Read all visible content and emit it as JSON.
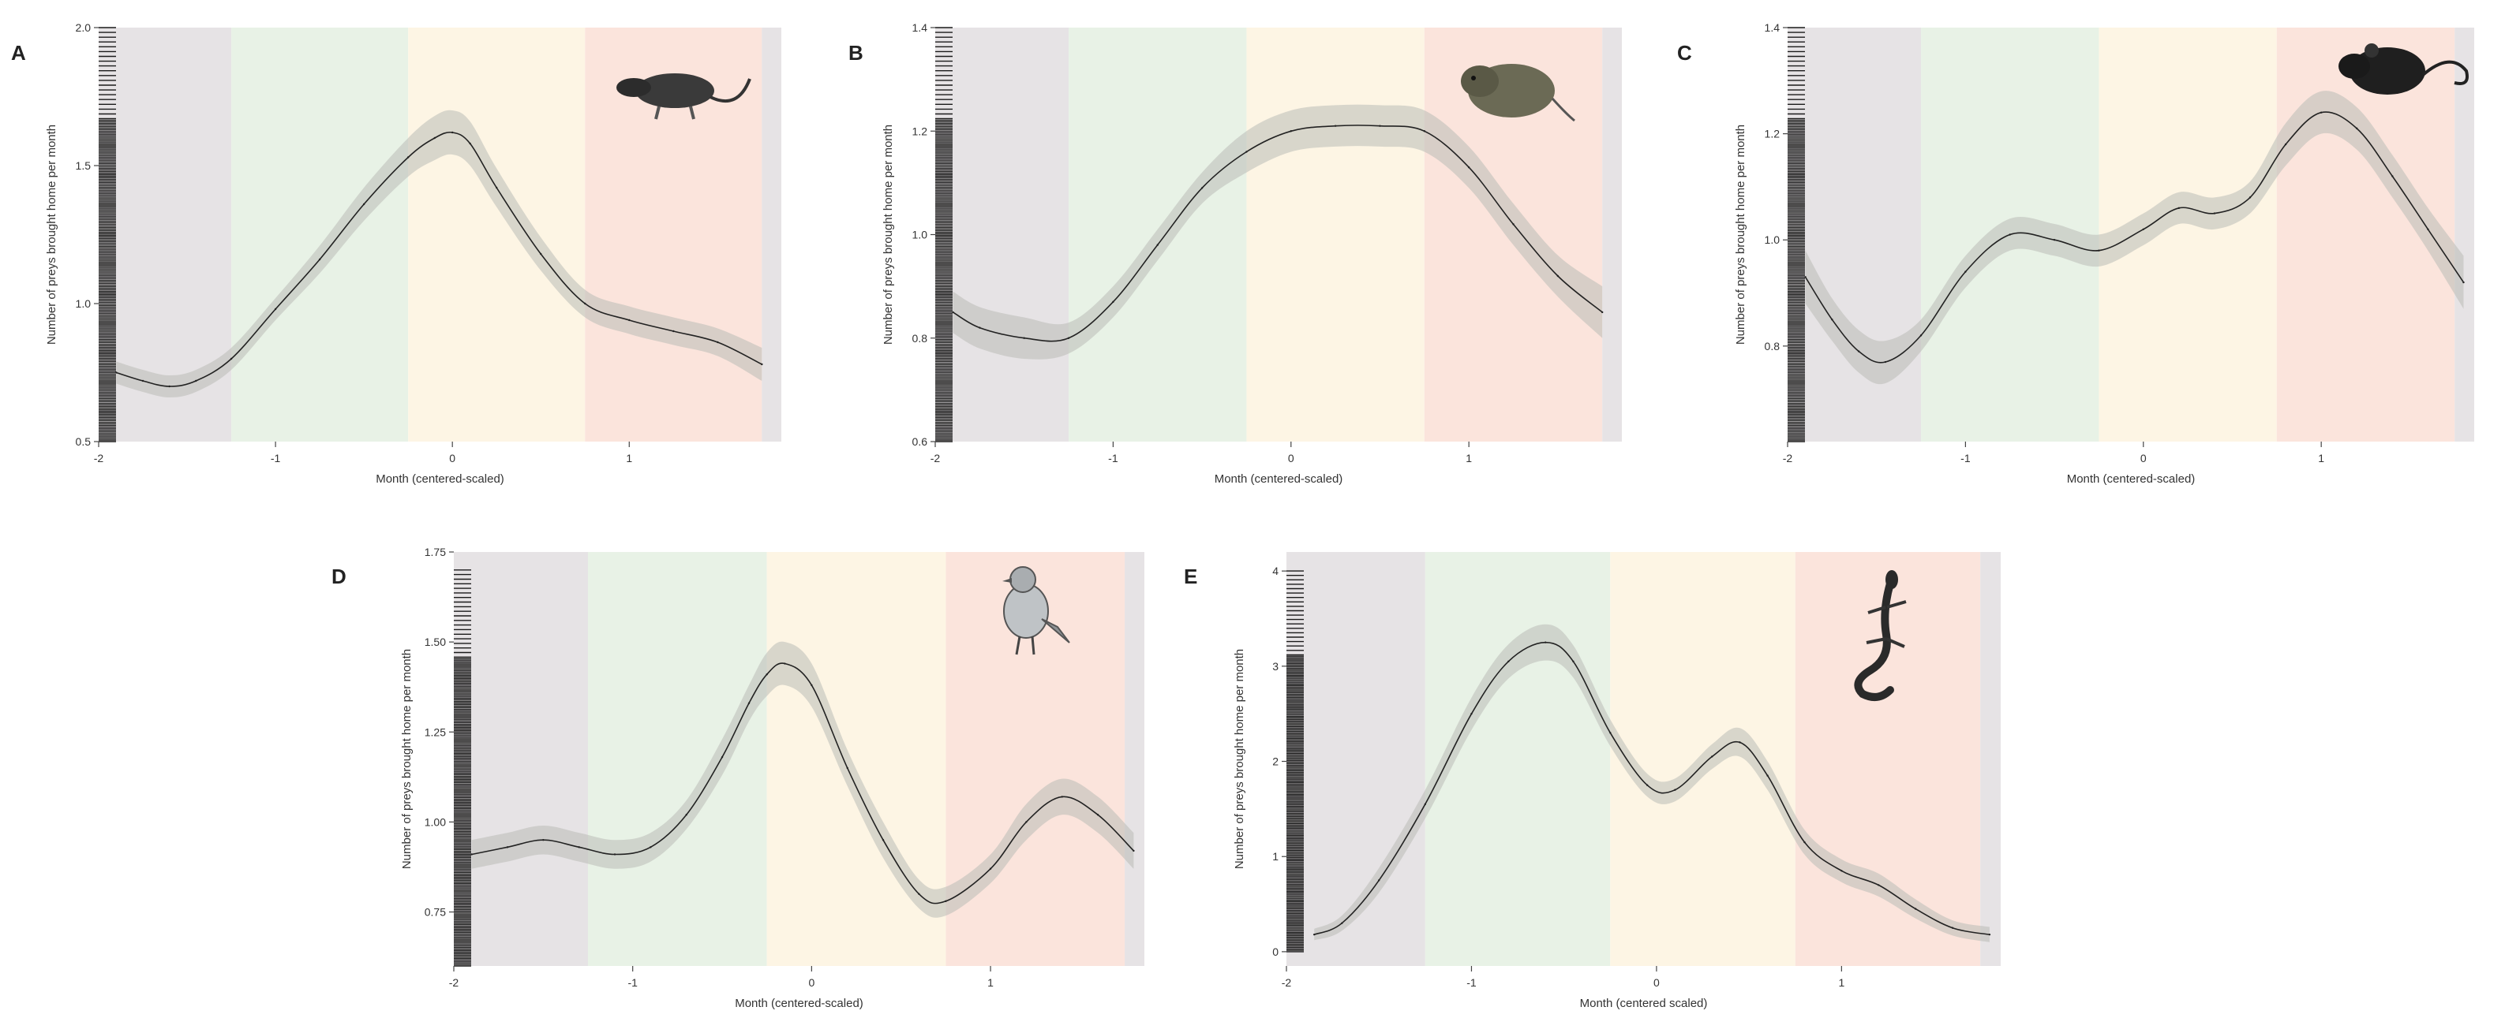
{
  "figure": {
    "season_colors": {
      "winter": "#e6e3e5",
      "spring": "#e8f2e6",
      "summer": "#fdf5e4",
      "autumn": "#fbe4dc",
      "edge": "#e6e3e5"
    },
    "line_color": "#222222",
    "band_color": "#b9bcb7",
    "rug_color": "#1a1a1a"
  },
  "chart_data": [
    {
      "type": "line",
      "panel": "A",
      "icon": "shrew-icon",
      "xlabel": "Month (centered-scaled)",
      "ylabel": "Number of preys brought home per month",
      "xlim": [
        -2.0,
        1.86
      ],
      "ylim": [
        0.5,
        2.0
      ],
      "xticks": [
        -2,
        -1,
        0,
        1
      ],
      "xtick_labels": [
        "-2",
        "-1",
        "0",
        "1"
      ],
      "yticks": [
        0.5,
        1.0,
        1.5,
        2.0
      ],
      "ytick_labels": [
        "0.5",
        "1.0",
        "1.5",
        "2.0"
      ],
      "season_bounds": [
        -1.25,
        -0.25,
        0.75,
        1.75
      ],
      "rug_start": 0.5,
      "rug_end": 2.0,
      "x": [
        -1.9,
        -1.75,
        -1.6,
        -1.45,
        -1.25,
        -1.0,
        -0.75,
        -0.5,
        -0.25,
        -0.1,
        0.0,
        0.1,
        0.25,
        0.5,
        0.75,
        1.0,
        1.25,
        1.5,
        1.75
      ],
      "y": [
        0.75,
        0.72,
        0.7,
        0.72,
        0.8,
        0.98,
        1.16,
        1.36,
        1.53,
        1.6,
        1.62,
        1.58,
        1.42,
        1.18,
        1.0,
        0.94,
        0.9,
        0.86,
        0.78
      ],
      "lower": [
        0.71,
        0.68,
        0.66,
        0.68,
        0.76,
        0.94,
        1.11,
        1.3,
        1.46,
        1.52,
        1.54,
        1.5,
        1.35,
        1.12,
        0.95,
        0.89,
        0.85,
        0.81,
        0.72
      ],
      "upper": [
        0.79,
        0.76,
        0.74,
        0.76,
        0.84,
        1.02,
        1.21,
        1.42,
        1.6,
        1.68,
        1.7,
        1.66,
        1.49,
        1.24,
        1.05,
        0.99,
        0.95,
        0.91,
        0.84
      ]
    },
    {
      "type": "line",
      "panel": "B",
      "icon": "vole-icon",
      "xlabel": "Month (centered-scaled)",
      "ylabel": "Number of preys brought home per month",
      "xlim": [
        -2.0,
        1.86
      ],
      "ylim": [
        0.6,
        1.4
      ],
      "xticks": [
        -2,
        -1,
        0,
        1
      ],
      "xtick_labels": [
        "-2",
        "-1",
        "0",
        "1"
      ],
      "yticks": [
        0.6,
        0.8,
        1.0,
        1.2,
        1.4
      ],
      "ytick_labels": [
        "0.6",
        "0.8",
        "1.0",
        "1.2",
        "1.4"
      ],
      "season_bounds": [
        -1.25,
        -0.25,
        0.75,
        1.75
      ],
      "rug_start": 0.6,
      "rug_end": 1.4,
      "x": [
        -1.9,
        -1.75,
        -1.5,
        -1.25,
        -1.0,
        -0.75,
        -0.5,
        -0.25,
        0.0,
        0.25,
        0.5,
        0.75,
        1.0,
        1.25,
        1.5,
        1.75
      ],
      "y": [
        0.85,
        0.82,
        0.8,
        0.8,
        0.87,
        0.98,
        1.09,
        1.16,
        1.2,
        1.21,
        1.21,
        1.2,
        1.13,
        1.02,
        0.92,
        0.85
      ],
      "lower": [
        0.81,
        0.78,
        0.76,
        0.77,
        0.84,
        0.95,
        1.06,
        1.12,
        1.16,
        1.17,
        1.17,
        1.16,
        1.09,
        0.98,
        0.88,
        0.8
      ],
      "upper": [
        0.89,
        0.86,
        0.84,
        0.83,
        0.9,
        1.01,
        1.12,
        1.2,
        1.24,
        1.25,
        1.25,
        1.24,
        1.17,
        1.06,
        0.96,
        0.9
      ]
    },
    {
      "type": "line",
      "panel": "C",
      "icon": "rat-icon",
      "xlabel": "Month (centered-scaled)",
      "ylabel": "Number of preys brought home per month",
      "xlim": [
        -2.0,
        1.86
      ],
      "ylim": [
        0.62,
        1.4
      ],
      "xticks": [
        -2,
        -1,
        0,
        1
      ],
      "xtick_labels": [
        "-2",
        "-1",
        "0",
        "1"
      ],
      "yticks": [
        0.8,
        1.0,
        1.2,
        1.4
      ],
      "ytick_labels": [
        "0.8",
        "1.0",
        "1.2",
        "1.4"
      ],
      "season_bounds": [
        -1.25,
        -0.25,
        0.75,
        1.75
      ],
      "rug_start": 0.62,
      "rug_end": 1.4,
      "x": [
        -1.9,
        -1.75,
        -1.6,
        -1.45,
        -1.25,
        -1.0,
        -0.75,
        -0.5,
        -0.25,
        0.0,
        0.2,
        0.4,
        0.6,
        0.8,
        1.0,
        1.2,
        1.4,
        1.6,
        1.8
      ],
      "y": [
        0.93,
        0.85,
        0.79,
        0.77,
        0.82,
        0.94,
        1.01,
        1.0,
        0.98,
        1.02,
        1.06,
        1.05,
        1.08,
        1.18,
        1.24,
        1.21,
        1.12,
        1.02,
        0.92
      ],
      "lower": [
        0.88,
        0.81,
        0.75,
        0.73,
        0.79,
        0.91,
        0.98,
        0.97,
        0.95,
        0.99,
        1.03,
        1.02,
        1.05,
        1.14,
        1.2,
        1.17,
        1.08,
        0.98,
        0.87
      ],
      "upper": [
        0.98,
        0.89,
        0.83,
        0.81,
        0.85,
        0.97,
        1.04,
        1.03,
        1.01,
        1.05,
        1.09,
        1.08,
        1.11,
        1.22,
        1.28,
        1.25,
        1.16,
        1.06,
        0.97
      ]
    },
    {
      "type": "line",
      "panel": "D",
      "icon": "bird-icon",
      "xlabel": "Month (centered-scaled)",
      "ylabel": "Number of preys brought home per month",
      "xlim": [
        -2.0,
        1.86
      ],
      "ylim": [
        0.6,
        1.75
      ],
      "xticks": [
        -2,
        -1,
        0,
        1
      ],
      "xtick_labels": [
        "-2",
        "-1",
        "0",
        "1"
      ],
      "yticks": [
        0.75,
        1.0,
        1.25,
        1.5,
        1.75
      ],
      "ytick_labels": [
        "0.75",
        "1.00",
        "1.25",
        "1.50",
        "1.75"
      ],
      "season_bounds": [
        -1.25,
        -0.25,
        0.75,
        1.75
      ],
      "rug_start": 0.6,
      "rug_end": 1.7,
      "x": [
        -1.9,
        -1.7,
        -1.5,
        -1.3,
        -1.1,
        -0.9,
        -0.7,
        -0.5,
        -0.35,
        -0.25,
        -0.15,
        0.0,
        0.2,
        0.4,
        0.6,
        0.75,
        1.0,
        1.2,
        1.4,
        1.6,
        1.8
      ],
      "y": [
        0.91,
        0.93,
        0.95,
        0.93,
        0.91,
        0.93,
        1.02,
        1.18,
        1.33,
        1.41,
        1.44,
        1.38,
        1.15,
        0.95,
        0.8,
        0.78,
        0.87,
        1.0,
        1.07,
        1.02,
        0.92
      ],
      "lower": [
        0.87,
        0.89,
        0.91,
        0.89,
        0.87,
        0.89,
        0.98,
        1.13,
        1.28,
        1.35,
        1.38,
        1.32,
        1.1,
        0.9,
        0.76,
        0.74,
        0.83,
        0.95,
        1.02,
        0.97,
        0.87
      ],
      "upper": [
        0.95,
        0.97,
        0.99,
        0.97,
        0.95,
        0.97,
        1.06,
        1.23,
        1.38,
        1.47,
        1.5,
        1.44,
        1.2,
        1.0,
        0.84,
        0.82,
        0.91,
        1.05,
        1.12,
        1.07,
        0.97
      ]
    },
    {
      "type": "line",
      "panel": "E",
      "icon": "lizard-icon",
      "xlabel": "Month (centered scaled)",
      "ylabel": "Number of preys brought home per month",
      "xlim": [
        -2.0,
        1.86
      ],
      "ylim": [
        -0.15,
        4.2
      ],
      "xticks": [
        -2,
        -1,
        0,
        1
      ],
      "xtick_labels": [
        "-2",
        "-1",
        "0",
        "1"
      ],
      "yticks": [
        0,
        1,
        2,
        3,
        4
      ],
      "ytick_labels": [
        "0",
        "1",
        "2",
        "3",
        "4"
      ],
      "season_bounds": [
        -1.25,
        -0.25,
        0.75,
        1.75
      ],
      "rug_start": 0.0,
      "rug_end": 4.0,
      "x": [
        -1.85,
        -1.7,
        -1.5,
        -1.25,
        -1.0,
        -0.8,
        -0.6,
        -0.45,
        -0.25,
        -0.05,
        0.1,
        0.3,
        0.45,
        0.6,
        0.8,
        1.0,
        1.2,
        1.4,
        1.6,
        1.8
      ],
      "y": [
        0.18,
        0.3,
        0.75,
        1.55,
        2.5,
        3.05,
        3.25,
        3.05,
        2.3,
        1.75,
        1.7,
        2.05,
        2.2,
        1.85,
        1.15,
        0.85,
        0.7,
        0.45,
        0.25,
        0.18
      ],
      "lower": [
        0.12,
        0.22,
        0.62,
        1.4,
        2.33,
        2.87,
        3.06,
        2.88,
        2.16,
        1.63,
        1.58,
        1.92,
        2.05,
        1.7,
        1.02,
        0.73,
        0.58,
        0.35,
        0.17,
        0.1
      ],
      "upper": [
        0.24,
        0.38,
        0.88,
        1.7,
        2.67,
        3.23,
        3.44,
        3.22,
        2.44,
        1.87,
        1.82,
        2.18,
        2.35,
        2.0,
        1.28,
        0.97,
        0.82,
        0.55,
        0.33,
        0.26
      ]
    }
  ]
}
